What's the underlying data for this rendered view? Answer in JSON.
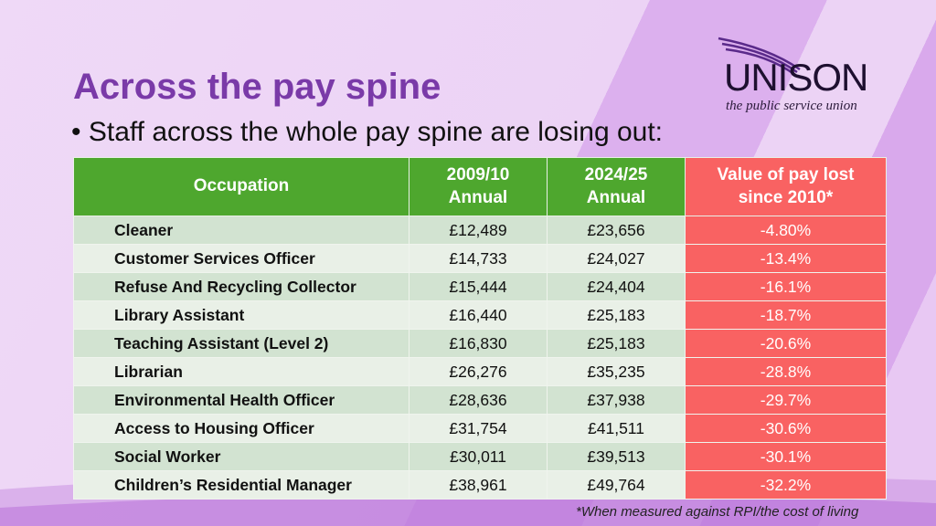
{
  "title": "Across the pay spine",
  "bullet": "Staff across the whole pay spine are losing out:",
  "logo": {
    "word": "UNISON",
    "tagline": "the public service union"
  },
  "table": {
    "headers": [
      "Occupation",
      "2009/10 Annual",
      "2024/25 Annual",
      "Value of pay lost since 2010*"
    ],
    "header_lines": [
      [
        "Occupation"
      ],
      [
        "2009/10",
        "Annual"
      ],
      [
        "2024/25",
        "Annual"
      ],
      [
        "Value of pay lost",
        "since 2010*"
      ]
    ],
    "rows": [
      [
        "Cleaner",
        "£12,489",
        "£23,656",
        "-4.80%"
      ],
      [
        "Customer Services Officer",
        "£14,733",
        "£24,027",
        "-13.4%"
      ],
      [
        "Refuse And Recycling Collector",
        "£15,444",
        "£24,404",
        "-16.1%"
      ],
      [
        "Library Assistant",
        "£16,440",
        "£25,183",
        "-18.7%"
      ],
      [
        "Teaching Assistant (Level 2)",
        "£16,830",
        "£25,183",
        "-20.6%"
      ],
      [
        "Librarian",
        "£26,276",
        "£35,235",
        "-28.8%"
      ],
      [
        "Environmental Health Officer",
        "£28,636",
        "£37,938",
        "-29.7%"
      ],
      [
        "Access to Housing Officer",
        "£31,754",
        "£41,511",
        "-30.6%"
      ],
      [
        "Social Worker",
        "£30,011",
        "£39,513",
        "-30.1%"
      ],
      [
        "Children’s Residential Manager",
        "£38,961",
        "£49,764",
        "-32.2%"
      ]
    ]
  },
  "footnote": "*When measured against RPI/the cost of living",
  "colors": {
    "header_green": "#4ea72e",
    "loss_red": "#f96262",
    "title_purple": "#7a3aa8"
  }
}
